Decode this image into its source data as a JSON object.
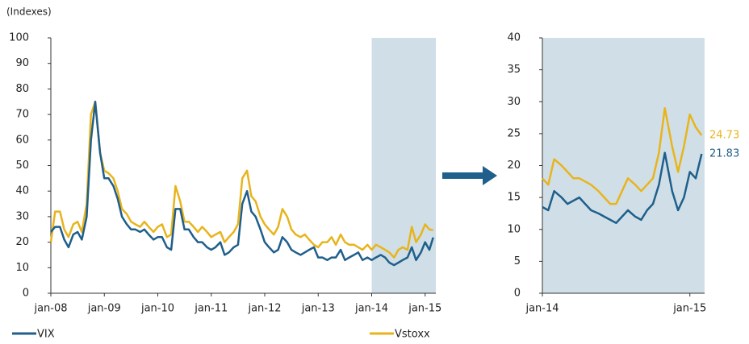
{
  "chart_data": [
    {
      "type": "line",
      "ylabel": "(Indexes)",
      "x": [
        2008.0,
        2008.08,
        2008.17,
        2008.25,
        2008.33,
        2008.42,
        2008.5,
        2008.58,
        2008.67,
        2008.75,
        2008.83,
        2008.92,
        2009.0,
        2009.08,
        2009.17,
        2009.25,
        2009.33,
        2009.42,
        2009.5,
        2009.58,
        2009.67,
        2009.75,
        2009.83,
        2009.92,
        2010.0,
        2010.08,
        2010.17,
        2010.25,
        2010.33,
        2010.42,
        2010.5,
        2010.58,
        2010.67,
        2010.75,
        2010.83,
        2010.92,
        2011.0,
        2011.08,
        2011.17,
        2011.25,
        2011.33,
        2011.42,
        2011.5,
        2011.58,
        2011.67,
        2011.75,
        2011.83,
        2011.92,
        2012.0,
        2012.08,
        2012.17,
        2012.25,
        2012.33,
        2012.42,
        2012.5,
        2012.58,
        2012.67,
        2012.75,
        2012.83,
        2012.92,
        2013.0,
        2013.08,
        2013.17,
        2013.25,
        2013.33,
        2013.42,
        2013.5,
        2013.58,
        2013.67,
        2013.75,
        2013.83,
        2013.92,
        2014.0,
        2014.08,
        2014.17,
        2014.25,
        2014.33,
        2014.42,
        2014.5,
        2014.58,
        2014.67,
        2014.75,
        2014.83,
        2014.92,
        2015.0,
        2015.08,
        2015.15
      ],
      "series": [
        {
          "name": "VIX",
          "color": "#1f5f8b",
          "values": [
            24,
            26,
            26,
            21,
            18,
            23,
            24,
            21,
            30,
            60,
            75,
            55,
            45,
            45,
            42,
            37,
            30,
            27,
            25,
            25,
            24,
            25,
            23,
            21,
            22,
            22,
            18,
            17,
            33,
            33,
            25,
            25,
            22,
            20,
            20,
            18,
            17,
            18,
            20,
            15,
            16,
            18,
            19,
            35,
            40,
            32,
            30,
            25,
            20,
            18,
            16,
            17,
            22,
            20,
            17,
            16,
            15,
            16,
            17,
            18,
            14,
            14,
            13,
            14,
            14,
            17,
            13,
            14,
            15,
            16,
            13,
            14,
            13,
            14,
            15,
            14,
            12,
            11,
            12,
            13,
            14,
            18,
            13,
            16,
            20,
            17,
            21.83
          ]
        },
        {
          "name": "Vstoxx",
          "color": "#e8b41c",
          "values": [
            20,
            32,
            32,
            25,
            22,
            27,
            28,
            24,
            35,
            70,
            75,
            55,
            48,
            47,
            45,
            40,
            33,
            31,
            28,
            27,
            26,
            28,
            26,
            24,
            26,
            27,
            22,
            23,
            42,
            36,
            28,
            28,
            26,
            24,
            26,
            24,
            22,
            23,
            24,
            20,
            22,
            24,
            27,
            45,
            48,
            38,
            36,
            30,
            27,
            25,
            23,
            26,
            33,
            30,
            25,
            23,
            22,
            23,
            21,
            19,
            18,
            20,
            20,
            22,
            19,
            23,
            20,
            19,
            19,
            18,
            17,
            19,
            17,
            19,
            18,
            17,
            16,
            14,
            17,
            18,
            17,
            26,
            20,
            23,
            27,
            25,
            24.73
          ]
        }
      ],
      "xlim": [
        2008,
        2015.2
      ],
      "ylim": [
        0,
        100
      ],
      "xticks": [
        {
          "value": 2008,
          "label": "jan-08"
        },
        {
          "value": 2009,
          "label": "jan-09"
        },
        {
          "value": 2010,
          "label": "jan-10"
        },
        {
          "value": 2011,
          "label": "jan-11"
        },
        {
          "value": 2012,
          "label": "jan-12"
        },
        {
          "value": 2013,
          "label": "jan-13"
        },
        {
          "value": 2014,
          "label": "jan-14"
        },
        {
          "value": 2015,
          "label": "jan-15"
        }
      ],
      "yticks": [
        0,
        10,
        20,
        30,
        40,
        50,
        60,
        70,
        80,
        90,
        100
      ],
      "highlight": [
        2014,
        2015.2
      ],
      "highlight_color": "#d0dfe7",
      "legend": "bottom"
    },
    {
      "type": "line",
      "x": [
        2014.0,
        2014.04,
        2014.08,
        2014.13,
        2014.17,
        2014.21,
        2014.25,
        2014.29,
        2014.33,
        2014.38,
        2014.42,
        2014.46,
        2014.5,
        2014.54,
        2014.58,
        2014.63,
        2014.67,
        2014.71,
        2014.75,
        2014.79,
        2014.83,
        2014.88,
        2014.92,
        2014.96,
        2015.0,
        2015.04,
        2015.08
      ],
      "series": [
        {
          "name": "VIX",
          "color": "#1f5f8b",
          "values": [
            13.5,
            13,
            16,
            15,
            14,
            14.5,
            15,
            14,
            13,
            12.5,
            12,
            11.5,
            11,
            12,
            13,
            12,
            11.5,
            13,
            14,
            17,
            22,
            16,
            13,
            15,
            19,
            18,
            21.83
          ]
        },
        {
          "name": "Vstoxx",
          "color": "#e8b41c",
          "values": [
            18,
            17,
            21,
            20,
            19,
            18,
            18,
            17.5,
            17,
            16,
            15,
            14,
            14,
            16,
            18,
            17,
            16,
            17,
            18,
            22,
            29,
            23,
            19,
            23,
            28,
            26,
            24.73
          ]
        }
      ],
      "xlim": [
        2014,
        2015.1
      ],
      "ylim": [
        0,
        40
      ],
      "xticks": [
        {
          "value": 2014,
          "label": "jan-14"
        },
        {
          "value": 2015,
          "label": "jan-15"
        }
      ],
      "yticks": [
        0,
        5,
        10,
        15,
        20,
        25,
        30,
        35,
        40
      ],
      "highlight": [
        2014,
        2015.1
      ],
      "highlight_color": "#d0dfe7",
      "end_labels": true
    }
  ]
}
